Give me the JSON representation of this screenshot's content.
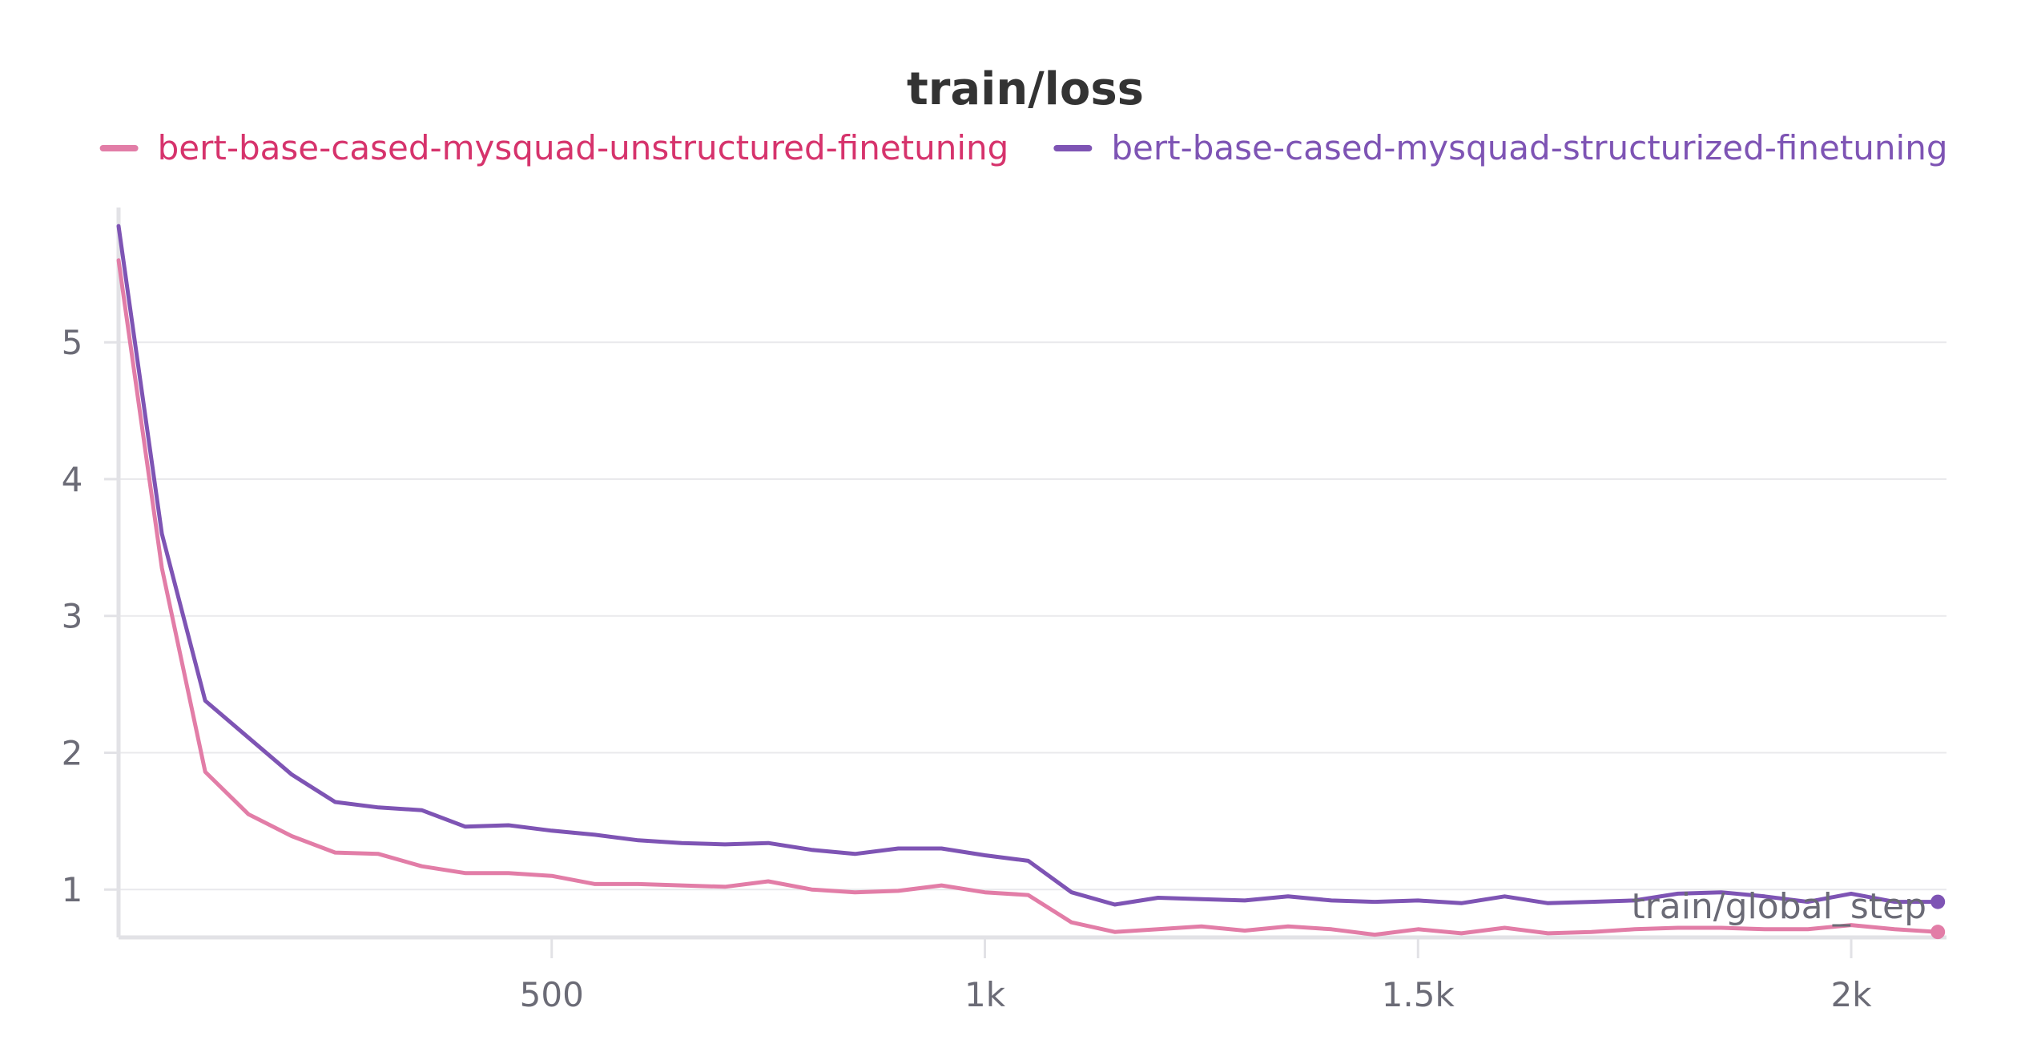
{
  "chart_data": {
    "type": "line",
    "title": "train/loss",
    "xlabel": "train/global_step",
    "ylabel": "",
    "xlim": [
      0,
      2110
    ],
    "ylim": [
      0.65,
      5.95
    ],
    "x_ticks": [
      500,
      1000,
      1500,
      2000
    ],
    "x_tick_labels": [
      "500",
      "1k",
      "1.5k",
      "2k"
    ],
    "y_ticks": [
      1,
      2,
      3,
      4,
      5
    ],
    "y_tick_labels": [
      "1",
      "2",
      "3",
      "4",
      "5"
    ],
    "grid": true,
    "legend_position": "top",
    "series": [
      {
        "name": "bert-base-cased-mysquad-unstructured-finetuning",
        "color": "#e27da7",
        "label_color": "#d6336c",
        "x": [
          0,
          50,
          100,
          150,
          200,
          250,
          300,
          350,
          400,
          450,
          500,
          550,
          600,
          650,
          700,
          750,
          800,
          850,
          900,
          950,
          1000,
          1050,
          1100,
          1150,
          1200,
          1250,
          1300,
          1350,
          1400,
          1450,
          1500,
          1550,
          1600,
          1650,
          1700,
          1750,
          1800,
          1850,
          1900,
          1950,
          2000,
          2050,
          2100
        ],
        "y": [
          5.6,
          3.35,
          1.86,
          1.55,
          1.39,
          1.27,
          1.26,
          1.17,
          1.12,
          1.12,
          1.1,
          1.04,
          1.04,
          1.03,
          1.02,
          1.06,
          1.0,
          0.98,
          0.99,
          1.03,
          0.98,
          0.96,
          0.76,
          0.69,
          0.71,
          0.73,
          0.7,
          0.73,
          0.71,
          0.67,
          0.71,
          0.68,
          0.72,
          0.68,
          0.69,
          0.71,
          0.72,
          0.72,
          0.71,
          0.71,
          0.74,
          0.71,
          0.69
        ]
      },
      {
        "name": "bert-base-cased-mysquad-structurized-finetuning",
        "color": "#7e54b4",
        "label_color": "#7e54b4",
        "x": [
          0,
          50,
          100,
          150,
          200,
          250,
          300,
          350,
          400,
          450,
          500,
          550,
          600,
          650,
          700,
          750,
          800,
          850,
          900,
          950,
          1000,
          1050,
          1100,
          1150,
          1200,
          1250,
          1300,
          1350,
          1400,
          1450,
          1500,
          1550,
          1600,
          1650,
          1700,
          1750,
          1800,
          1850,
          1900,
          1950,
          2000,
          2050,
          2100
        ],
        "y": [
          5.85,
          3.6,
          2.38,
          2.11,
          1.84,
          1.64,
          1.6,
          1.58,
          1.46,
          1.47,
          1.43,
          1.4,
          1.36,
          1.34,
          1.33,
          1.34,
          1.29,
          1.26,
          1.3,
          1.3,
          1.25,
          1.21,
          0.98,
          0.89,
          0.94,
          0.93,
          0.92,
          0.95,
          0.92,
          0.91,
          0.92,
          0.9,
          0.95,
          0.9,
          0.91,
          0.92,
          0.97,
          0.98,
          0.95,
          0.91,
          0.97,
          0.91,
          0.91
        ]
      }
    ]
  }
}
